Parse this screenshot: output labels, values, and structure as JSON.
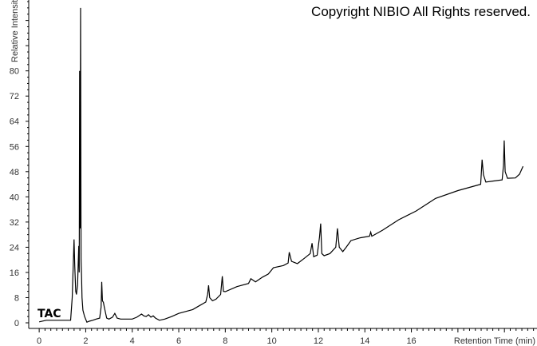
{
  "copyright": "Copyright NIBIO All Rights reserved.",
  "chart_data": {
    "type": "line",
    "title": "",
    "trace_label": "TAC",
    "xlabel": "Retention Time (min)",
    "ylabel": "Relative Intensity",
    "xlim": [
      -0.45,
      21.4
    ],
    "ylim": [
      0,
      102.5
    ],
    "x_ticks": [
      0,
      2,
      4,
      6,
      8,
      10,
      12,
      14,
      16
    ],
    "y_ticks": [
      0,
      8,
      16,
      24,
      32,
      40,
      48,
      56,
      64,
      72,
      80
    ],
    "grid": false,
    "line_color": "#000000",
    "series": [
      {
        "x": [
          0,
          0.3,
          1.0,
          1.35,
          1.42,
          1.5,
          1.53,
          1.57,
          1.6,
          1.65,
          1.7,
          1.72,
          1.74,
          1.76,
          1.78,
          1.8,
          1.82,
          1.84,
          1.88,
          1.95,
          2.05,
          2.15,
          2.3,
          2.45,
          2.6,
          2.66,
          2.69,
          2.72,
          2.76,
          2.8,
          2.9,
          3.0,
          3.15,
          3.25,
          3.35,
          3.5,
          4.0,
          4.2,
          4.4,
          4.5,
          4.6,
          4.7,
          4.8,
          4.9,
          5.0,
          5.17,
          5.4,
          5.7,
          6.0,
          6.3,
          6.6,
          6.9,
          7.16,
          7.24,
          7.28,
          7.33,
          7.45,
          7.6,
          7.8,
          7.87,
          7.92,
          8.0,
          8.5,
          9.0,
          9.1,
          9.3,
          9.6,
          9.85,
          10.07,
          10.5,
          10.7,
          10.75,
          10.85,
          11.1,
          11.4,
          11.65,
          11.73,
          11.8,
          11.95,
          12.05,
          12.1,
          12.15,
          12.25,
          12.5,
          12.75,
          12.82,
          12.9,
          13.05,
          13.2,
          13.4,
          13.8,
          14.2,
          14.25,
          14.3,
          14.76,
          15.45,
          16.2,
          17.04,
          18.0,
          18.98,
          19.04,
          19.1,
          19.2,
          19.5,
          19.9,
          19.96,
          19.99,
          20.03,
          20.13,
          20.47,
          20.65,
          20.8
        ],
        "y": [
          0.3,
          0.8,
          0.8,
          0.8,
          8,
          26.5,
          18,
          10,
          9,
          12,
          24.4,
          16,
          80,
          30,
          100,
          20,
          15,
          8,
          4,
          2,
          0.2,
          0.5,
          0.8,
          1.2,
          1.5,
          5,
          13,
          7,
          6.5,
          5,
          1.5,
          1.2,
          1.8,
          3,
          1.5,
          1.2,
          1.2,
          1.8,
          2.8,
          2.2,
          2.0,
          2.6,
          1.8,
          2.2,
          1.5,
          0.8,
          1.2,
          2,
          3,
          3.6,
          4.2,
          5.5,
          6.6,
          9,
          11.9,
          8,
          7,
          7.5,
          9,
          14.8,
          10,
          9.9,
          11.5,
          12.5,
          14,
          13,
          14.5,
          15.5,
          17.5,
          18.2,
          19,
          22.4,
          19.5,
          18.8,
          20.5,
          22,
          25.3,
          21,
          21.5,
          27.2,
          31.5,
          22,
          21.3,
          22,
          24,
          30,
          24,
          22.6,
          24,
          26.1,
          27,
          27.5,
          28.8,
          27.5,
          29.4,
          32.7,
          35.5,
          39.5,
          42,
          44,
          51.8,
          47,
          44.7,
          45,
          45.4,
          50,
          57.9,
          48,
          45.9,
          46,
          47.2,
          49.7
        ]
      }
    ]
  }
}
